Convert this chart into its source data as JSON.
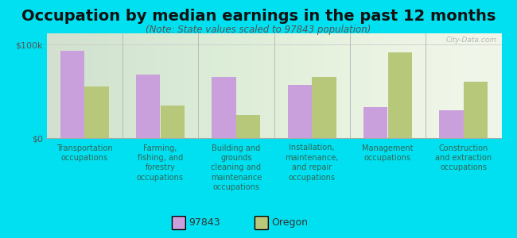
{
  "title": "Occupation by median earnings in the past 12 months",
  "subtitle": "(Note: State values scaled to 97843 population)",
  "categories": [
    "Transportation\noccupations",
    "Farming,\nfishing, and\nforestry\noccupations",
    "Building and\ngrounds\ncleaning and\nmaintenance\noccupations",
    "Installation,\nmaintenance,\nand repair\noccupations",
    "Management\noccupations",
    "Construction\nand extraction\noccupations"
  ],
  "values_97843": [
    93000,
    68000,
    65000,
    57000,
    33000,
    30000
  ],
  "values_oregon": [
    55000,
    35000,
    25000,
    65000,
    92000,
    60000
  ],
  "color_97843": "#c9a0dc",
  "color_oregon": "#b8c87a",
  "ylim": [
    0,
    112000
  ],
  "yticks": [
    0,
    100000
  ],
  "ytick_labels": [
    "$0",
    "$100k"
  ],
  "legend_97843": "97843",
  "legend_oregon": "Oregon",
  "background_outer": "#00e0f0",
  "background_chart": "#f0f5e8",
  "watermark": "City-Data.com",
  "title_fontsize": 14,
  "subtitle_fontsize": 8.5,
  "tick_fontsize": 8,
  "xlabel_fontsize": 7.0,
  "label_color": "#336655"
}
